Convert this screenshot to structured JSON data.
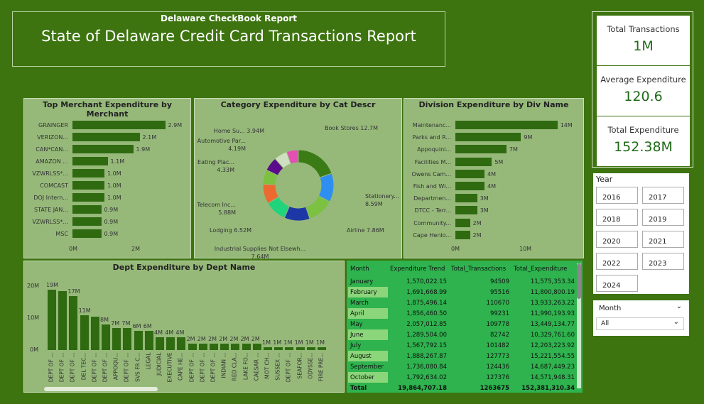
{
  "header": {
    "subtitle": "Delaware CheckBook Report",
    "title": "State of Delaware Credit Card Transactions Report"
  },
  "kpis": [
    {
      "label": "Total Transactions",
      "value": "1M"
    },
    {
      "label": "Average Expenditure",
      "value": "120.6"
    },
    {
      "label": "Total Expenditure",
      "value": "152.38M"
    }
  ],
  "merchant": {
    "title": "Top Merchant Expenditure by Merchant",
    "x_ticks": [
      "0M",
      "2M"
    ],
    "chart_data": {
      "type": "bar",
      "orientation": "horizontal",
      "categories": [
        "GRAINGER",
        "VERIZON...",
        "CAN*CAN...",
        "AMAZON ...",
        "VZWRLSS*...",
        "COMCAST",
        "DOJ Intern...",
        "STATE JAN...",
        "VZWRLSS*...",
        "MSC"
      ],
      "values": [
        2.9,
        2.1,
        1.9,
        1.1,
        1.0,
        1.0,
        1.0,
        0.9,
        0.9,
        0.9
      ],
      "labels": [
        "2.9M",
        "2.1M",
        "1.9M",
        "1.1M",
        "1.0M",
        "1.0M",
        "1.0M",
        "0.9M",
        "0.9M",
        "0.9M"
      ],
      "xlim": [
        0,
        3
      ]
    }
  },
  "category": {
    "title": "Category Expenditure by Cat Descr",
    "chart_data": {
      "type": "pie",
      "donut": true,
      "slices": [
        {
          "label": "Book Stores",
          "value": 12.7,
          "text": "12.7M",
          "color": "#3a7b16"
        },
        {
          "label": "Stationery...",
          "value": 8.59,
          "text": "8.59M",
          "color": "#2f8ff0"
        },
        {
          "label": "Airline",
          "value": 7.86,
          "text": "7.86M",
          "color": "#7cc142"
        },
        {
          "label": "Industrial Supplies Not Elsewh...",
          "value": 7.64,
          "text": "7.64M",
          "color": "#1d38a6"
        },
        {
          "label": "Lodging",
          "value": 6.52,
          "text": "6.52M",
          "color": "#1fd47a"
        },
        {
          "label": "Telecom Inc...",
          "value": 5.88,
          "text": "5.88M",
          "color": "#ec6a30"
        },
        {
          "label": "Eating Plac...",
          "value": 4.33,
          "text": "4.33M",
          "color": "#7cc142"
        },
        {
          "label": "Automotive Par...",
          "value": 4.19,
          "text": "4.19M",
          "color": "#5a0c8a"
        },
        {
          "label": "Home Su...",
          "value": 3.94,
          "text": "3.94M",
          "color": "#cfe0c0"
        },
        {
          "label": "",
          "value": 3.5,
          "text": "",
          "color": "#e34fb3"
        }
      ]
    }
  },
  "division": {
    "title": "Division Expenditure by Div Name",
    "x_ticks": [
      "0M",
      "10M"
    ],
    "chart_data": {
      "type": "bar",
      "orientation": "horizontal",
      "categories": [
        "Maintenanc...",
        "Parks and R...",
        "Appoquini...",
        "Facilities M...",
        "Owens Cam...",
        "Fish and Wi...",
        "Departmen...",
        "DTCC - Terr...",
        "Community...",
        "Cape Henlo..."
      ],
      "values": [
        14,
        9,
        7,
        5,
        4,
        4,
        3,
        3,
        2,
        2
      ],
      "labels": [
        "14M",
        "9M",
        "7M",
        "5M",
        "4M",
        "4M",
        "3M",
        "3M",
        "2M",
        "2M"
      ],
      "xlim": [
        0,
        15
      ]
    }
  },
  "dept": {
    "title": "Dept Expenditure by Dept Name",
    "y_ticks": [
      "20M",
      "10M",
      "0M"
    ],
    "chart_data": {
      "type": "bar",
      "categories": [
        "DEPT OF ...",
        "DEPT OF ...",
        "DEPT OF ...",
        "DEL TEC...",
        "DEPT OF ...",
        "DEPT OF ...",
        "APPOQU...",
        "DEPT OF ...",
        "SVS FR C...",
        "LEGAL",
        "JUDICIAL",
        "EXECUTIVE",
        "CAPE HE...",
        "DEPT OF ...",
        "DEPT OF ...",
        "DEPT OF ...",
        "INDIAN ...",
        "RED CLA...",
        "LAKE FO...",
        "CAESAR ...",
        "MOT CH...",
        "SUSSEX ...",
        "DEPT OF ...",
        "SEAFOR...",
        "ODYSSE...",
        "FIRE PRE..."
      ],
      "values": [
        19,
        18.5,
        17,
        11,
        10.5,
        8,
        7,
        7,
        6,
        6,
        4,
        4,
        4,
        2,
        2,
        2,
        2,
        2,
        2,
        2,
        1,
        1,
        1,
        1,
        1,
        1
      ],
      "labels": [
        "19M",
        "",
        "17M",
        "11M",
        "",
        "8M",
        "7M",
        "7M",
        "6M",
        "6M",
        "4M",
        "4M",
        "4M",
        "2M",
        "2M",
        "2M",
        "2M",
        "2M",
        "2M",
        "2M",
        "1M",
        "1M",
        "1M",
        "1M",
        "1M",
        "1M"
      ],
      "ylim": [
        0,
        20
      ]
    }
  },
  "table": {
    "columns": [
      "Month",
      "Expenditure Trend",
      "Total_Transactions",
      "Total_Expenditure"
    ],
    "rows": [
      [
        "January",
        "1,570,022.15",
        "94509",
        "11,575,353.34"
      ],
      [
        "February",
        "1,691,668.99",
        "95516",
        "11,800,800.19"
      ],
      [
        "March",
        "1,875,496.14",
        "110670",
        "13,933,263.22"
      ],
      [
        "April",
        "1,856,460.50",
        "99231",
        "11,990,193.93"
      ],
      [
        "May",
        "2,057,012.85",
        "109778",
        "13,449,134.77"
      ],
      [
        "June",
        "1,289,504.00",
        "82742",
        "10,329,761.60"
      ],
      [
        "July",
        "1,567,792.15",
        "101482",
        "12,203,223.92"
      ],
      [
        "August",
        "1,888,267.87",
        "127773",
        "15,221,554.55"
      ],
      [
        "September",
        "1,736,080.84",
        "124436",
        "14,687,449.23"
      ],
      [
        "October",
        "1,792,634.02",
        "127376",
        "14,571,948.31"
      ]
    ],
    "total": [
      "Total",
      "19,864,707.18",
      "1263675",
      "152,381,310.34"
    ]
  },
  "year_slicer": {
    "title": "Year",
    "options": [
      "2016",
      "2017",
      "2018",
      "2019",
      "2020",
      "2021",
      "2022",
      "2023",
      "2024"
    ]
  },
  "month_slicer": {
    "label": "Month",
    "value": "All"
  }
}
